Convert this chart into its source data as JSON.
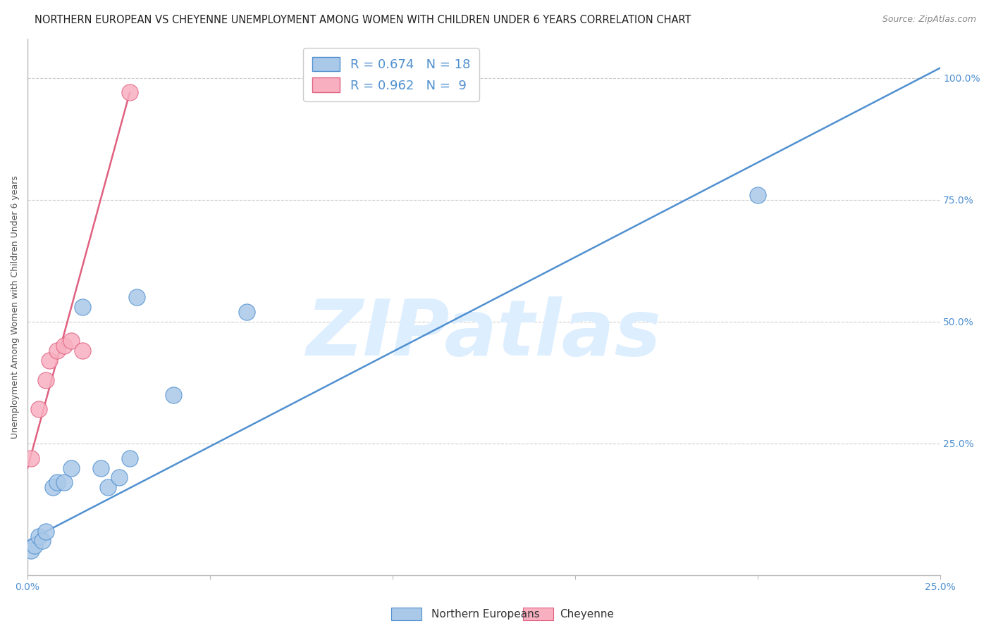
{
  "title": "NORTHERN EUROPEAN VS CHEYENNE UNEMPLOYMENT AMONG WOMEN WITH CHILDREN UNDER 6 YEARS CORRELATION CHART",
  "source": "Source: ZipAtlas.com",
  "ylabel": "Unemployment Among Women with Children Under 6 years",
  "watermark": "ZIPatlas",
  "xlim": [
    0.0,
    0.25
  ],
  "ylim": [
    -0.02,
    1.08
  ],
  "xticks": [
    0.0,
    0.05,
    0.1,
    0.15,
    0.2,
    0.25
  ],
  "yticks_right": [
    0.25,
    0.5,
    0.75,
    1.0
  ],
  "xtick_labels": [
    "0.0%",
    "",
    "",
    "",
    "",
    "25.0%"
  ],
  "ytick_labels_right": [
    "25.0%",
    "50.0%",
    "75.0%",
    "100.0%"
  ],
  "blue_color": "#aac8e8",
  "pink_color": "#f8b0c0",
  "blue_line_color": "#5090d0",
  "pink_line_color": "#e06080",
  "blue_R": 0.674,
  "blue_N": 18,
  "pink_R": 0.962,
  "pink_N": 9,
  "blue_legend": "Northern Europeans",
  "pink_legend": "Cheyenne",
  "blue_scatter_x": [
    0.001,
    0.002,
    0.003,
    0.004,
    0.005,
    0.007,
    0.008,
    0.01,
    0.012,
    0.015,
    0.02,
    0.022,
    0.025,
    0.028,
    0.03,
    0.04,
    0.06,
    0.2
  ],
  "blue_scatter_y": [
    0.03,
    0.04,
    0.06,
    0.05,
    0.07,
    0.16,
    0.17,
    0.17,
    0.2,
    0.53,
    0.2,
    0.16,
    0.18,
    0.22,
    0.55,
    0.35,
    0.52,
    0.76
  ],
  "pink_scatter_x": [
    0.001,
    0.003,
    0.005,
    0.006,
    0.008,
    0.01,
    0.012,
    0.015,
    0.028
  ],
  "pink_scatter_y": [
    0.22,
    0.32,
    0.38,
    0.42,
    0.44,
    0.45,
    0.46,
    0.44,
    0.97
  ],
  "blue_line_x": [
    0.0,
    0.25
  ],
  "blue_line_y": [
    0.05,
    1.02
  ],
  "pink_line_x": [
    0.0,
    0.028
  ],
  "pink_line_y": [
    0.2,
    0.97
  ],
  "title_fontsize": 10.5,
  "source_fontsize": 9,
  "axis_label_fontsize": 9,
  "tick_fontsize": 10,
  "legend_fontsize": 13,
  "scatter_size": 280,
  "background_color": "#ffffff",
  "grid_color": "#cccccc",
  "axis_color": "#bbbbbb",
  "right_axis_color": "#5090d0",
  "watermark_color": "#ddeeff",
  "watermark_fontsize": 80
}
